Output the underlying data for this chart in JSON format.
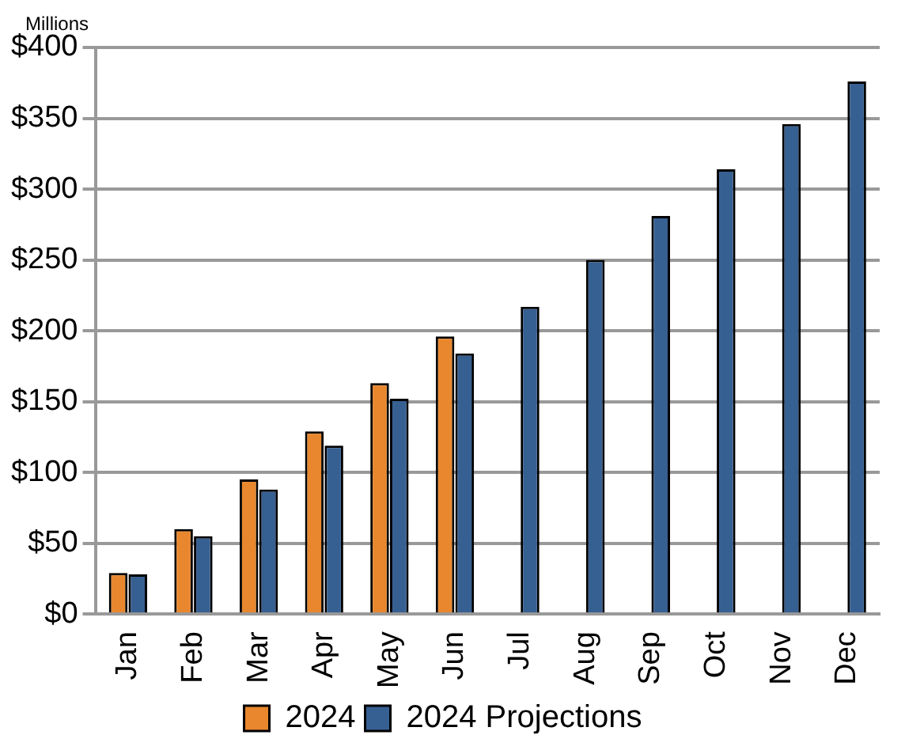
{
  "chart_data": {
    "type": "bar",
    "annotations": [
      "Millions"
    ],
    "categories": [
      "Jan",
      "Feb",
      "Mar",
      "Apr",
      "May",
      "Jun",
      "Jul",
      "Aug",
      "Sep",
      "Oct",
      "Nov",
      "Dec"
    ],
    "series": [
      {
        "name": "2024",
        "color": "#e8872e",
        "values": [
          29,
          60,
          95,
          129,
          163,
          196,
          null,
          null,
          null,
          null,
          null,
          null
        ]
      },
      {
        "name": "2024 Projections",
        "color": "#376092",
        "values": [
          28,
          55,
          88,
          119,
          152,
          184,
          217,
          250,
          281,
          314,
          346,
          376
        ]
      }
    ],
    "ylim": [
      0,
      400
    ],
    "yticks": [
      {
        "value": 0,
        "label": "$0"
      },
      {
        "value": 50,
        "label": "$50"
      },
      {
        "value": 100,
        "label": "$100"
      },
      {
        "value": 150,
        "label": "$150"
      },
      {
        "value": 200,
        "label": "$200"
      },
      {
        "value": 250,
        "label": "$250"
      },
      {
        "value": 300,
        "label": "$300"
      },
      {
        "value": 350,
        "label": "$350"
      },
      {
        "value": 400,
        "label": "$400"
      }
    ],
    "grid": "y",
    "legend": "bottom"
  }
}
